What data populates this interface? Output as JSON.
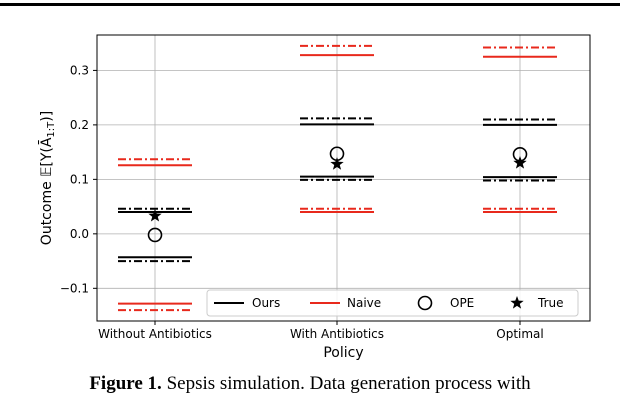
{
  "chart_data": {
    "type": "scatter",
    "title": "",
    "xlabel": "Policy",
    "ylabel": "Outcome 𝔼[Y(Ā",
    "ylabel_sub": "1:T",
    "ylabel_end": ")]",
    "categories": [
      "Without Antibiotics",
      "With Antibiotics",
      "Optimal"
    ],
    "ylim": [
      -0.16,
      0.365
    ],
    "yticks": [
      -0.1,
      0.0,
      0.1,
      0.2,
      0.3
    ],
    "ytick_labels": [
      "−0.1",
      "0.0",
      "0.1",
      "0.2",
      "0.3"
    ],
    "grid": true,
    "legend_position": "bottom",
    "colors": {
      "ours": "#000000",
      "naive": "#e8291c"
    },
    "series": [
      {
        "name": "Ours",
        "style": "solid bounds",
        "lower": [
          -0.043,
          0.105,
          0.104
        ],
        "upper": [
          0.04,
          0.201,
          0.2
        ]
      },
      {
        "name": "Ours (dash-dot)",
        "style": "dash-dot bounds",
        "lower": [
          -0.05,
          0.099,
          0.098
        ],
        "upper": [
          0.046,
          0.212,
          0.21
        ]
      },
      {
        "name": "Naive",
        "style": "solid bounds",
        "lower": [
          -0.128,
          0.04,
          0.04
        ],
        "upper": [
          0.126,
          0.328,
          0.325
        ]
      },
      {
        "name": "Naive (dash-dot)",
        "style": "dash-dot bounds",
        "lower": [
          -0.14,
          0.046,
          0.046
        ],
        "upper": [
          0.137,
          0.345,
          0.342
        ]
      },
      {
        "name": "OPE",
        "marker": "circle",
        "values": [
          -0.002,
          0.147,
          0.146
        ]
      },
      {
        "name": "True",
        "marker": "star",
        "values": [
          0.033,
          0.128,
          0.13
        ]
      }
    ],
    "legend": [
      "Ours",
      "Naive",
      "OPE",
      "True"
    ]
  },
  "caption": {
    "bold": "Figure 1.",
    "text": " Sepsis simulation. Data generation process with"
  }
}
